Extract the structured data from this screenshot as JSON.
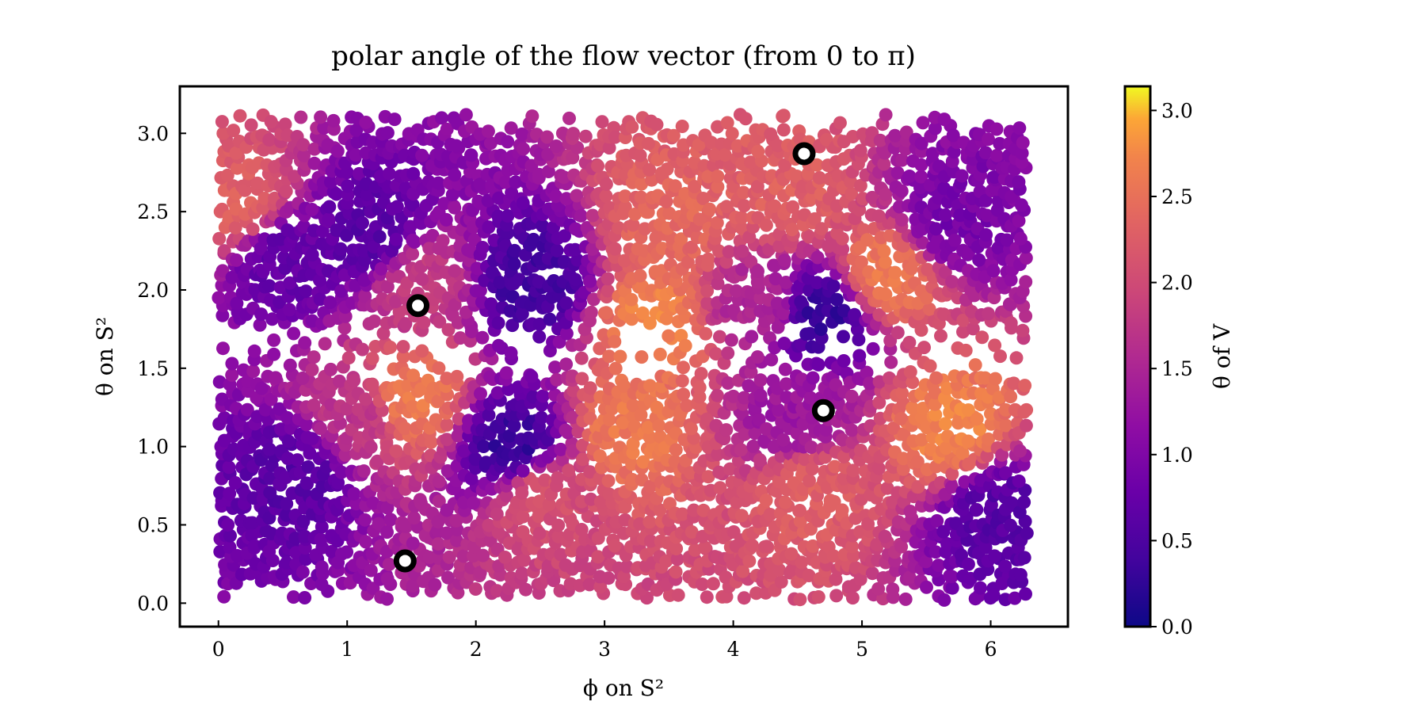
{
  "chart_data": {
    "type": "scatter",
    "title": "polar angle of the flow vector (from 0 to π)",
    "xlabel": "ϕ on S²",
    "ylabel": "θ on S²",
    "xlim": [
      -0.3,
      6.6
    ],
    "ylim": [
      -0.15,
      3.3
    ],
    "xticks": [
      "0",
      "1",
      "2",
      "3",
      "4",
      "5",
      "6"
    ],
    "yticks": [
      "0.0",
      "0.5",
      "1.0",
      "1.5",
      "2.0",
      "2.5",
      "3.0"
    ],
    "colorbar": {
      "label": "θ of V",
      "range": [
        0.0,
        3.14
      ],
      "ticks": [
        "0.0",
        "0.5",
        "1.0",
        "1.5",
        "2.0",
        "2.5",
        "3.0"
      ],
      "colormap": "plasma"
    },
    "markers": [
      {
        "x": 1.55,
        "y": 1.9
      },
      {
        "x": 4.55,
        "y": 2.87
      },
      {
        "x": 4.7,
        "y": 1.23
      },
      {
        "x": 1.45,
        "y": 0.27
      }
    ],
    "field_regions": [
      {
        "x": 0.15,
        "y": 2.55,
        "value": 2.3
      },
      {
        "x": 0.5,
        "y": 2.2,
        "value": 0.7
      },
      {
        "x": 1.2,
        "y": 2.35,
        "value": 0.6
      },
      {
        "x": 1.55,
        "y": 2.05,
        "value": 1.8
      },
      {
        "x": 2.45,
        "y": 2.05,
        "value": 0.4
      },
      {
        "x": 1.5,
        "y": 1.3,
        "value": 2.6
      },
      {
        "x": 1.05,
        "y": 1.2,
        "value": 1.7
      },
      {
        "x": 0.6,
        "y": 0.85,
        "value": 0.6
      },
      {
        "x": 2.3,
        "y": 1.0,
        "value": 0.3
      },
      {
        "x": 2.5,
        "y": 0.7,
        "value": 2.1
      },
      {
        "x": 3.2,
        "y": 1.1,
        "value": 2.6
      },
      {
        "x": 3.5,
        "y": 2.4,
        "value": 2.4
      },
      {
        "x": 3.4,
        "y": 1.8,
        "value": 2.7
      },
      {
        "x": 4.4,
        "y": 2.6,
        "value": 2.3
      },
      {
        "x": 4.2,
        "y": 1.9,
        "value": 1.5
      },
      {
        "x": 4.7,
        "y": 1.85,
        "value": 0.3
      },
      {
        "x": 5.2,
        "y": 2.1,
        "value": 2.6
      },
      {
        "x": 5.7,
        "y": 2.45,
        "value": 0.9
      },
      {
        "x": 4.5,
        "y": 1.15,
        "value": 1.3
      },
      {
        "x": 4.6,
        "y": 0.75,
        "value": 2.3
      },
      {
        "x": 5.7,
        "y": 1.1,
        "value": 2.7
      },
      {
        "x": 6.05,
        "y": 0.6,
        "value": 0.6
      }
    ]
  }
}
